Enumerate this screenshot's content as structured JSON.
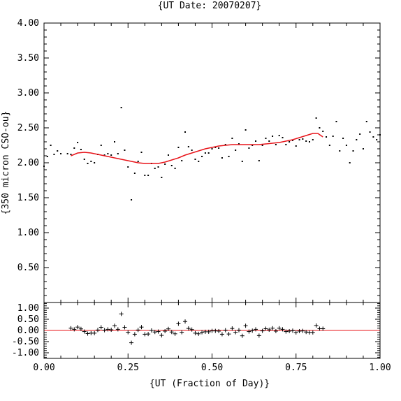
{
  "chart_data": {
    "title": "{UT Date: 20070207}",
    "xlabel": "{UT (Fraction of Day)}",
    "colors": {
      "axes": "#000000",
      "points": "#000000",
      "fit": "#e8141a"
    },
    "main": {
      "type": "scatter",
      "ylabel": "{350 micron CSO-ou}",
      "xlim": [
        0.0,
        1.0
      ],
      "ylim": [
        0.0,
        4.0
      ],
      "xticks": [
        "0.00",
        "0.25",
        "0.50",
        "0.75",
        "1.00"
      ],
      "yticks": [
        "0.50",
        "1.00",
        "1.50",
        "2.00",
        "2.50",
        "3.00",
        "3.50",
        "4.00"
      ],
      "points": [
        [
          0.0,
          1.95
        ],
        [
          0.01,
          2.09
        ],
        [
          0.02,
          2.25
        ],
        [
          0.03,
          2.12
        ],
        [
          0.04,
          2.17
        ],
        [
          0.05,
          2.13
        ],
        [
          0.07,
          2.13
        ],
        [
          0.08,
          2.12
        ],
        [
          0.09,
          2.21
        ],
        [
          0.1,
          2.29
        ],
        [
          0.11,
          2.19
        ],
        [
          0.12,
          2.05
        ],
        [
          0.13,
          1.99
        ],
        [
          0.14,
          2.02
        ],
        [
          0.15,
          2.0
        ],
        [
          0.16,
          2.12
        ],
        [
          0.17,
          2.25
        ],
        [
          0.18,
          2.11
        ],
        [
          0.19,
          2.13
        ],
        [
          0.2,
          2.11
        ],
        [
          0.21,
          2.3
        ],
        [
          0.22,
          2.13
        ],
        [
          0.23,
          2.79
        ],
        [
          0.24,
          2.18
        ],
        [
          0.25,
          1.94
        ],
        [
          0.26,
          1.47
        ],
        [
          0.27,
          1.85
        ],
        [
          0.28,
          2.02
        ],
        [
          0.29,
          2.15
        ],
        [
          0.3,
          1.82
        ],
        [
          0.31,
          1.82
        ],
        [
          0.32,
          1.99
        ],
        [
          0.33,
          1.92
        ],
        [
          0.34,
          1.94
        ],
        [
          0.35,
          1.79
        ],
        [
          0.36,
          1.98
        ],
        [
          0.37,
          2.11
        ],
        [
          0.38,
          1.96
        ],
        [
          0.39,
          1.92
        ],
        [
          0.4,
          2.22
        ],
        [
          0.41,
          2.03
        ],
        [
          0.42,
          2.44
        ],
        [
          0.43,
          2.23
        ],
        [
          0.44,
          2.18
        ],
        [
          0.45,
          2.05
        ],
        [
          0.46,
          2.02
        ],
        [
          0.47,
          2.09
        ],
        [
          0.48,
          2.14
        ],
        [
          0.49,
          2.14
        ],
        [
          0.5,
          2.2
        ],
        [
          0.51,
          2.22
        ],
        [
          0.52,
          2.21
        ],
        [
          0.53,
          2.07
        ],
        [
          0.54,
          2.26
        ],
        [
          0.55,
          2.09
        ],
        [
          0.56,
          2.35
        ],
        [
          0.57,
          2.18
        ],
        [
          0.58,
          2.27
        ],
        [
          0.59,
          2.02
        ],
        [
          0.6,
          2.47
        ],
        [
          0.61,
          2.21
        ],
        [
          0.62,
          2.25
        ],
        [
          0.63,
          2.31
        ],
        [
          0.64,
          2.03
        ],
        [
          0.65,
          2.25
        ],
        [
          0.66,
          2.35
        ],
        [
          0.67,
          2.31
        ],
        [
          0.68,
          2.38
        ],
        [
          0.69,
          2.26
        ],
        [
          0.7,
          2.39
        ],
        [
          0.71,
          2.36
        ],
        [
          0.72,
          2.26
        ],
        [
          0.73,
          2.3
        ],
        [
          0.74,
          2.32
        ],
        [
          0.75,
          2.24
        ],
        [
          0.76,
          2.33
        ],
        [
          0.77,
          2.34
        ],
        [
          0.78,
          2.31
        ],
        [
          0.79,
          2.3
        ],
        [
          0.8,
          2.33
        ],
        [
          0.81,
          2.64
        ],
        [
          0.82,
          2.5
        ],
        [
          0.83,
          2.45
        ],
        [
          0.84,
          2.37
        ],
        [
          0.85,
          2.25
        ],
        [
          0.86,
          2.38
        ],
        [
          0.87,
          2.59
        ],
        [
          0.88,
          2.17
        ],
        [
          0.89,
          2.35
        ],
        [
          0.9,
          2.25
        ],
        [
          0.91,
          2.0
        ],
        [
          0.92,
          2.17
        ],
        [
          0.93,
          2.33
        ],
        [
          0.94,
          2.41
        ],
        [
          0.95,
          2.2
        ],
        [
          0.96,
          2.59
        ],
        [
          0.97,
          2.44
        ],
        [
          0.98,
          2.37
        ],
        [
          0.99,
          2.33
        ],
        [
          1.0,
          2.4
        ]
      ],
      "fit": [
        [
          0.08,
          2.1
        ],
        [
          0.1,
          2.14
        ],
        [
          0.12,
          2.15
        ],
        [
          0.14,
          2.14
        ],
        [
          0.16,
          2.12
        ],
        [
          0.18,
          2.1
        ],
        [
          0.2,
          2.08
        ],
        [
          0.22,
          2.06
        ],
        [
          0.24,
          2.04
        ],
        [
          0.26,
          2.02
        ],
        [
          0.28,
          2.0
        ],
        [
          0.3,
          1.99
        ],
        [
          0.32,
          1.99
        ],
        [
          0.34,
          1.99
        ],
        [
          0.36,
          2.01
        ],
        [
          0.38,
          2.04
        ],
        [
          0.4,
          2.07
        ],
        [
          0.42,
          2.11
        ],
        [
          0.44,
          2.14
        ],
        [
          0.46,
          2.17
        ],
        [
          0.48,
          2.2
        ],
        [
          0.5,
          2.22
        ],
        [
          0.52,
          2.24
        ],
        [
          0.54,
          2.25
        ],
        [
          0.56,
          2.26
        ],
        [
          0.58,
          2.26
        ],
        [
          0.6,
          2.26
        ],
        [
          0.62,
          2.26
        ],
        [
          0.64,
          2.26
        ],
        [
          0.66,
          2.27
        ],
        [
          0.68,
          2.28
        ],
        [
          0.7,
          2.29
        ],
        [
          0.72,
          2.31
        ],
        [
          0.74,
          2.33
        ],
        [
          0.76,
          2.36
        ],
        [
          0.78,
          2.39
        ],
        [
          0.8,
          2.42
        ],
        [
          0.815,
          2.42
        ],
        [
          0.83,
          2.37
        ]
      ]
    },
    "residuals": {
      "type": "scatter",
      "xlim": [
        0.0,
        1.0
      ],
      "ylim": [
        -1.25,
        1.25
      ],
      "xticks": [
        "0.00",
        "0.25",
        "0.50",
        "0.75",
        "1.00"
      ],
      "yticks": [
        "1.00",
        "0.50",
        "0.00",
        "-0.50",
        "-1.00"
      ],
      "zero_line": 0.0,
      "points": [
        [
          0.08,
          0.1
        ],
        [
          0.09,
          0.05
        ],
        [
          0.1,
          0.15
        ],
        [
          0.11,
          0.07
        ],
        [
          0.12,
          -0.05
        ],
        [
          0.13,
          -0.14
        ],
        [
          0.14,
          -0.12
        ],
        [
          0.15,
          -0.12
        ],
        [
          0.16,
          0.02
        ],
        [
          0.17,
          0.14
        ],
        [
          0.18,
          0.01
        ],
        [
          0.19,
          0.05
        ],
        [
          0.2,
          0.03
        ],
        [
          0.21,
          0.21
        ],
        [
          0.22,
          0.05
        ],
        [
          0.23,
          0.74
        ],
        [
          0.24,
          0.14
        ],
        [
          0.25,
          -0.08
        ],
        [
          0.26,
          -0.55
        ],
        [
          0.27,
          -0.17
        ],
        [
          0.28,
          0.02
        ],
        [
          0.29,
          0.15
        ],
        [
          0.3,
          -0.17
        ],
        [
          0.31,
          -0.16
        ],
        [
          0.32,
          0.0
        ],
        [
          0.33,
          -0.07
        ],
        [
          0.34,
          -0.05
        ],
        [
          0.35,
          -0.22
        ],
        [
          0.36,
          -0.03
        ],
        [
          0.37,
          0.07
        ],
        [
          0.38,
          -0.07
        ],
        [
          0.39,
          -0.15
        ],
        [
          0.4,
          0.3
        ],
        [
          0.41,
          -0.08
        ],
        [
          0.42,
          0.4
        ],
        [
          0.43,
          0.09
        ],
        [
          0.44,
          0.04
        ],
        [
          0.45,
          -0.12
        ],
        [
          0.46,
          -0.15
        ],
        [
          0.47,
          -0.08
        ],
        [
          0.48,
          -0.06
        ],
        [
          0.49,
          -0.06
        ],
        [
          0.5,
          -0.02
        ],
        [
          0.51,
          -0.02
        ],
        [
          0.52,
          -0.03
        ],
        [
          0.53,
          -0.17
        ],
        [
          0.54,
          0.01
        ],
        [
          0.55,
          -0.16
        ],
        [
          0.56,
          0.09
        ],
        [
          0.57,
          -0.08
        ],
        [
          0.58,
          0.01
        ],
        [
          0.59,
          -0.24
        ],
        [
          0.6,
          0.21
        ],
        [
          0.61,
          -0.05
        ],
        [
          0.62,
          -0.01
        ],
        [
          0.63,
          0.05
        ],
        [
          0.64,
          -0.23
        ],
        [
          0.65,
          -0.02
        ],
        [
          0.66,
          0.08
        ],
        [
          0.67,
          0.03
        ],
        [
          0.68,
          0.1
        ],
        [
          0.69,
          -0.03
        ],
        [
          0.7,
          0.1
        ],
        [
          0.71,
          0.05
        ],
        [
          0.72,
          -0.05
        ],
        [
          0.73,
          -0.03
        ],
        [
          0.74,
          -0.01
        ],
        [
          0.75,
          -0.09
        ],
        [
          0.76,
          -0.03
        ],
        [
          0.77,
          -0.02
        ],
        [
          0.78,
          -0.07
        ],
        [
          0.79,
          -0.09
        ],
        [
          0.8,
          -0.09
        ],
        [
          0.81,
          0.22
        ],
        [
          0.82,
          0.08
        ],
        [
          0.83,
          0.08
        ]
      ]
    }
  }
}
